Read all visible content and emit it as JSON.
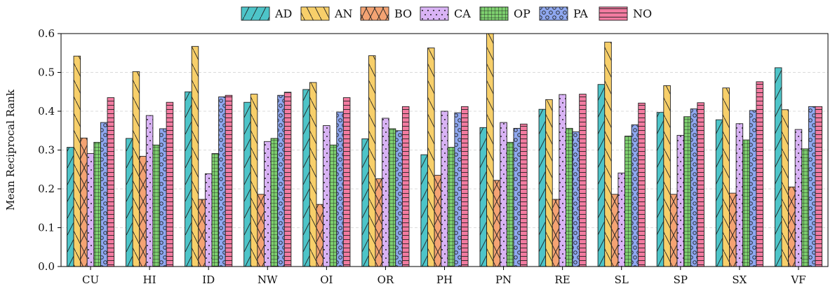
{
  "chart_data": {
    "type": "bar",
    "title": "",
    "xlabel": "",
    "ylabel": "Mean Reciprocal Rank",
    "ylim": [
      0.0,
      0.6
    ],
    "yticks": [
      "0.0",
      "0.1",
      "0.2",
      "0.3",
      "0.4",
      "0.5",
      "0.6"
    ],
    "grid": "horizontal dashed",
    "legend_position": "top-center",
    "categories": [
      "CU",
      "HI",
      "ID",
      "NW",
      "OI",
      "OR",
      "PH",
      "PN",
      "RE",
      "SL",
      "SP",
      "SX",
      "VF"
    ],
    "series": [
      {
        "name": "AD",
        "color": "#4dc4c8",
        "hatch": "diagonal",
        "values": [
          0.307,
          0.33,
          0.45,
          0.423,
          0.456,
          0.329,
          0.288,
          0.358,
          0.405,
          0.469,
          0.397,
          0.378,
          0.512
        ]
      },
      {
        "name": "AN",
        "color": "#f7cf6a",
        "hatch": "backslash",
        "values": [
          0.542,
          0.502,
          0.567,
          0.444,
          0.474,
          0.543,
          0.563,
          0.6,
          0.43,
          0.578,
          0.466,
          0.46,
          0.404
        ]
      },
      {
        "name": "BO",
        "color": "#f4a373",
        "hatch": "cross",
        "values": [
          0.331,
          0.284,
          0.173,
          0.186,
          0.16,
          0.226,
          0.235,
          0.222,
          0.173,
          0.186,
          0.186,
          0.189,
          0.205
        ]
      },
      {
        "name": "CA",
        "color": "#d9b3f5",
        "hatch": "small-dots",
        "values": [
          0.291,
          0.389,
          0.239,
          0.322,
          0.363,
          0.382,
          0.4,
          0.371,
          0.443,
          0.241,
          0.338,
          0.368,
          0.353
        ]
      },
      {
        "name": "OP",
        "color": "#7dcf6e",
        "hatch": "grid",
        "values": [
          0.32,
          0.313,
          0.291,
          0.33,
          0.313,
          0.355,
          0.307,
          0.32,
          0.356,
          0.336,
          0.386,
          0.326,
          0.303
        ]
      },
      {
        "name": "PA",
        "color": "#8fa8f0",
        "hatch": "circles",
        "values": [
          0.371,
          0.355,
          0.437,
          0.441,
          0.398,
          0.35,
          0.396,
          0.356,
          0.347,
          0.365,
          0.406,
          0.402,
          0.412
        ]
      },
      {
        "name": "NO",
        "color": "#f27ba0",
        "hatch": "horizontal",
        "values": [
          0.435,
          0.423,
          0.441,
          0.449,
          0.435,
          0.412,
          0.412,
          0.367,
          0.444,
          0.421,
          0.422,
          0.476,
          0.412
        ]
      }
    ]
  }
}
